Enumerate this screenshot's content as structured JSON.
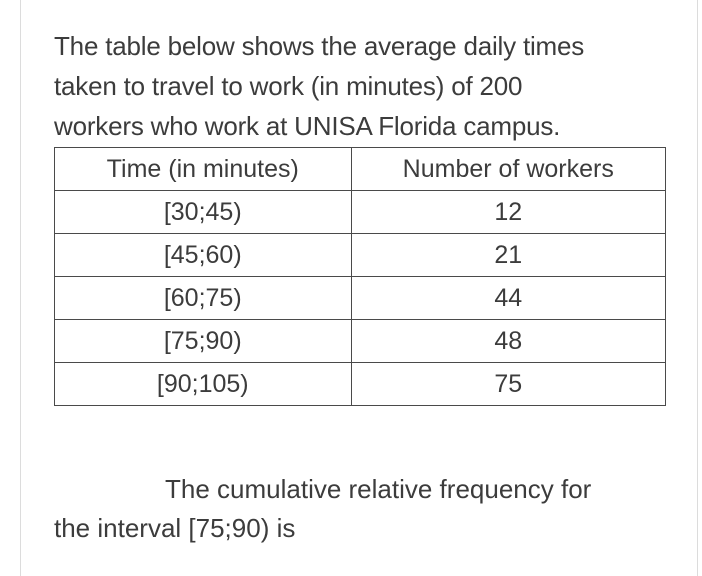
{
  "intro": {
    "line1": "The table below shows the average daily times",
    "line2": "taken to travel to work (in minutes) of 200",
    "line3": "workers who work at UNISA Florida campus."
  },
  "table": {
    "headers": [
      "Time (in minutes)",
      "Number of workers"
    ],
    "rows": [
      [
        "[30;45)",
        "12"
      ],
      [
        "[45;60)",
        "21"
      ],
      [
        "[60;75)",
        "44"
      ],
      [
        "[75;90)",
        "48"
      ],
      [
        "[90;105)",
        "75"
      ]
    ]
  },
  "question": {
    "line1": "The cumulative relative frequency for",
    "line2": "the interval [75;90) is"
  }
}
